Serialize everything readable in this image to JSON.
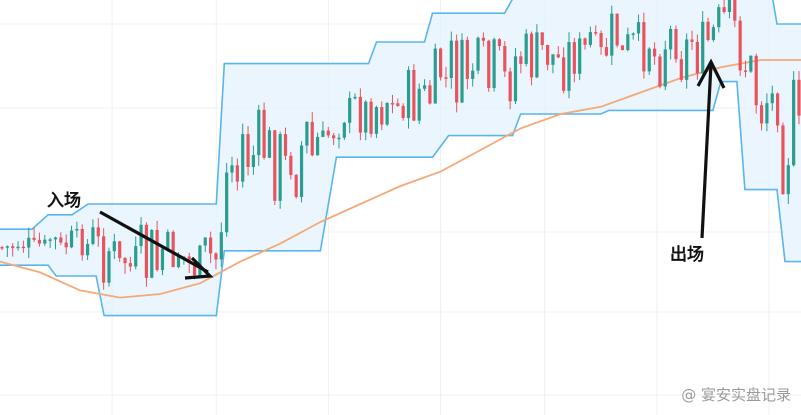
{
  "chart_data": {
    "type": "candlestick",
    "title": "",
    "xlabel": "",
    "ylabel": "",
    "grid": true,
    "colors": {
      "up": "#2a9d8f",
      "down": "#e8545e",
      "channel_line": "#58b6ea",
      "channel_fill": "#e3f2fd",
      "ma_line": "#f4a977",
      "annotation": "#111111"
    },
    "series": [
      {
        "role": "channel_upper",
        "segments": [
          [
            0,
            0.62
          ],
          [
            0.04,
            0.62
          ],
          [
            0.06,
            0.58
          ],
          [
            0.09,
            0.58
          ],
          [
            0.11,
            0.55
          ],
          [
            0.27,
            0.55
          ],
          [
            0.28,
            0.16
          ],
          [
            0.46,
            0.16
          ],
          [
            0.47,
            0.1
          ],
          [
            0.53,
            0.1
          ],
          [
            0.54,
            0.02
          ],
          [
            0.63,
            0.02
          ],
          [
            0.64,
            -0.02
          ],
          [
            0.71,
            -0.02
          ],
          [
            0.72,
            -0.05
          ],
          [
            0.82,
            -0.05
          ],
          [
            0.82,
            -0.08
          ],
          [
            0.96,
            -0.08
          ],
          [
            0.97,
            0.05
          ],
          [
            1.0,
            0.05
          ]
        ]
      },
      {
        "role": "channel_lower",
        "segments": [
          [
            0,
            0.72
          ],
          [
            0.06,
            0.72
          ],
          [
            0.07,
            0.75
          ],
          [
            0.12,
            0.75
          ],
          [
            0.13,
            0.86
          ],
          [
            0.27,
            0.86
          ],
          [
            0.28,
            0.68
          ],
          [
            0.4,
            0.68
          ],
          [
            0.42,
            0.42
          ],
          [
            0.54,
            0.42
          ],
          [
            0.56,
            0.36
          ],
          [
            0.64,
            0.36
          ],
          [
            0.65,
            0.3
          ],
          [
            0.75,
            0.3
          ],
          [
            0.76,
            0.29
          ],
          [
            0.89,
            0.29
          ],
          [
            0.9,
            0.21
          ],
          [
            0.92,
            0.21
          ],
          [
            0.93,
            0.51
          ],
          [
            0.97,
            0.51
          ],
          [
            0.98,
            0.71
          ],
          [
            1.0,
            0.71
          ]
        ]
      },
      {
        "role": "moving_average",
        "points": [
          [
            0,
            0.71
          ],
          [
            0.05,
            0.74
          ],
          [
            0.1,
            0.79
          ],
          [
            0.15,
            0.81
          ],
          [
            0.2,
            0.8
          ],
          [
            0.25,
            0.77
          ],
          [
            0.3,
            0.71
          ],
          [
            0.35,
            0.66
          ],
          [
            0.4,
            0.6
          ],
          [
            0.45,
            0.55
          ],
          [
            0.5,
            0.5
          ],
          [
            0.55,
            0.46
          ],
          [
            0.6,
            0.4
          ],
          [
            0.65,
            0.34
          ],
          [
            0.7,
            0.3
          ],
          [
            0.75,
            0.28
          ],
          [
            0.8,
            0.24
          ],
          [
            0.85,
            0.2
          ],
          [
            0.9,
            0.17
          ],
          [
            0.95,
            0.15
          ],
          [
            1.0,
            0.15
          ]
        ]
      }
    ],
    "annotations": [
      {
        "label": "入场"
      },
      {
        "label": "出场"
      }
    ]
  },
  "watermark": "@ 宴安实盘记录"
}
